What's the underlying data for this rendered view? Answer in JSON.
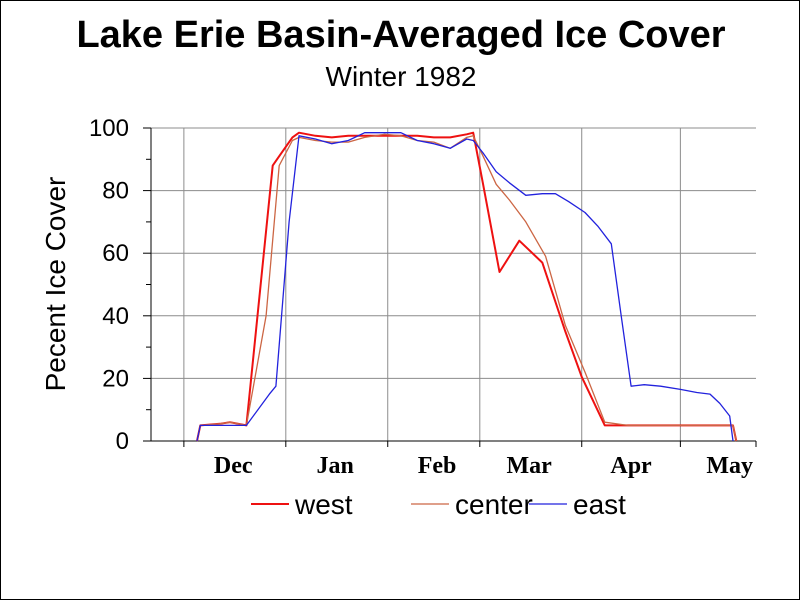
{
  "chart_data": {
    "type": "line",
    "title": "Lake Erie Basin-Averaged Ice Cover",
    "subtitle": "Winter 1982",
    "ylabel": "Pecent Ice Cover",
    "xlabel": "",
    "ylim": [
      0,
      100
    ],
    "yticks": [
      0,
      20,
      40,
      60,
      80,
      100
    ],
    "yticklabels": [
      "0",
      "20",
      "40",
      "60",
      "80",
      "100"
    ],
    "xlim": [
      "1981-11-21",
      "1982-05-24"
    ],
    "xticks": [
      "1981-12-01",
      "1982-01-01",
      "1982-02-01",
      "1982-03-01",
      "1982-04-01",
      "1982-05-01"
    ],
    "xticklabels": [
      "Dec",
      "Jan",
      "Feb",
      "Mar",
      "Apr",
      "May"
    ],
    "grid": true,
    "legend_position": "bottom",
    "series": [
      {
        "name": "west",
        "color": "#ee1111",
        "points": [
          [
            "1981-12-05",
            0
          ],
          [
            "1981-12-06",
            5
          ],
          [
            "1981-12-12",
            5.5
          ],
          [
            "1981-12-15",
            6
          ],
          [
            "1981-12-20",
            5
          ],
          [
            "1981-12-28",
            88
          ],
          [
            "1981-12-30",
            91
          ],
          [
            "1982-01-03",
            97
          ],
          [
            "1982-01-05",
            98.5
          ],
          [
            "1982-01-10",
            97.5
          ],
          [
            "1982-01-15",
            97
          ],
          [
            "1982-01-20",
            97.5
          ],
          [
            "1982-01-25",
            97.5
          ],
          [
            "1982-01-31",
            97.5
          ],
          [
            "1982-02-05",
            97.5
          ],
          [
            "1982-02-10",
            97.5
          ],
          [
            "1982-02-15",
            97
          ],
          [
            "1982-02-20",
            97
          ],
          [
            "1982-02-25",
            98
          ],
          [
            "1982-02-27",
            98.5
          ],
          [
            "1982-03-02",
            82
          ],
          [
            "1982-03-07",
            54
          ],
          [
            "1982-03-13",
            64
          ],
          [
            "1982-03-20",
            57
          ],
          [
            "1982-03-27",
            35
          ],
          [
            "1982-04-01",
            20.5
          ],
          [
            "1982-04-08",
            5
          ],
          [
            "1982-04-15",
            5
          ],
          [
            "1982-05-01",
            5
          ],
          [
            "1982-05-17",
            5
          ],
          [
            "1982-05-18",
            0
          ]
        ]
      },
      {
        "name": "center",
        "color": "#cc6644",
        "points": [
          [
            "1981-12-05",
            0
          ],
          [
            "1981-12-06",
            5
          ],
          [
            "1981-12-12",
            5.5
          ],
          [
            "1981-12-15",
            6
          ],
          [
            "1981-12-20",
            5
          ],
          [
            "1981-12-26",
            40
          ],
          [
            "1981-12-30",
            88
          ],
          [
            "1982-01-03",
            96
          ],
          [
            "1982-01-05",
            97
          ],
          [
            "1982-01-10",
            96
          ],
          [
            "1982-01-15",
            95.5
          ],
          [
            "1982-01-20",
            95.5
          ],
          [
            "1982-01-25",
            97
          ],
          [
            "1982-01-31",
            98
          ],
          [
            "1982-02-05",
            97.5
          ],
          [
            "1982-02-10",
            96
          ],
          [
            "1982-02-15",
            95.5
          ],
          [
            "1982-02-20",
            93.5
          ],
          [
            "1982-02-25",
            97
          ],
          [
            "1982-02-27",
            97.5
          ],
          [
            "1982-03-02",
            91
          ],
          [
            "1982-03-06",
            82
          ],
          [
            "1982-03-10",
            77
          ],
          [
            "1982-03-15",
            70
          ],
          [
            "1982-03-21",
            59
          ],
          [
            "1982-03-27",
            37
          ],
          [
            "1982-04-02",
            22
          ],
          [
            "1982-04-08",
            6
          ],
          [
            "1982-04-15",
            5
          ],
          [
            "1982-05-01",
            5
          ],
          [
            "1982-05-17",
            5
          ],
          [
            "1982-05-18",
            0
          ]
        ]
      },
      {
        "name": "east",
        "color": "#2222dd",
        "points": [
          [
            "1981-12-05",
            0
          ],
          [
            "1981-12-06",
            5
          ],
          [
            "1981-12-12",
            5
          ],
          [
            "1981-12-15",
            5
          ],
          [
            "1981-12-20",
            5
          ],
          [
            "1981-12-27",
            15
          ],
          [
            "1981-12-29",
            17.5
          ],
          [
            "1982-01-02",
            70
          ],
          [
            "1982-01-05",
            97.5
          ],
          [
            "1982-01-10",
            96.5
          ],
          [
            "1982-01-15",
            95
          ],
          [
            "1982-01-20",
            96
          ],
          [
            "1982-01-25",
            98.5
          ],
          [
            "1982-01-31",
            98.5
          ],
          [
            "1982-02-05",
            98.5
          ],
          [
            "1982-02-10",
            96
          ],
          [
            "1982-02-15",
            95
          ],
          [
            "1982-02-20",
            93.5
          ],
          [
            "1982-02-25",
            96.5
          ],
          [
            "1982-02-27",
            96
          ],
          [
            "1982-03-02",
            92
          ],
          [
            "1982-03-06",
            86
          ],
          [
            "1982-03-10",
            82.5
          ],
          [
            "1982-03-15",
            78.5
          ],
          [
            "1982-03-20",
            79
          ],
          [
            "1982-03-24",
            79
          ],
          [
            "1982-03-28",
            76.5
          ],
          [
            "1982-04-02",
            73
          ],
          [
            "1982-04-06",
            68.5
          ],
          [
            "1982-04-10",
            63
          ],
          [
            "1982-04-13",
            40
          ],
          [
            "1982-04-16",
            17.5
          ],
          [
            "1982-04-20",
            18
          ],
          [
            "1982-04-25",
            17.5
          ],
          [
            "1982-05-01",
            16.5
          ],
          [
            "1982-05-06",
            15.5
          ],
          [
            "1982-05-10",
            15
          ],
          [
            "1982-05-13",
            12
          ],
          [
            "1982-05-16",
            8
          ],
          [
            "1982-05-17",
            0
          ]
        ]
      }
    ]
  }
}
